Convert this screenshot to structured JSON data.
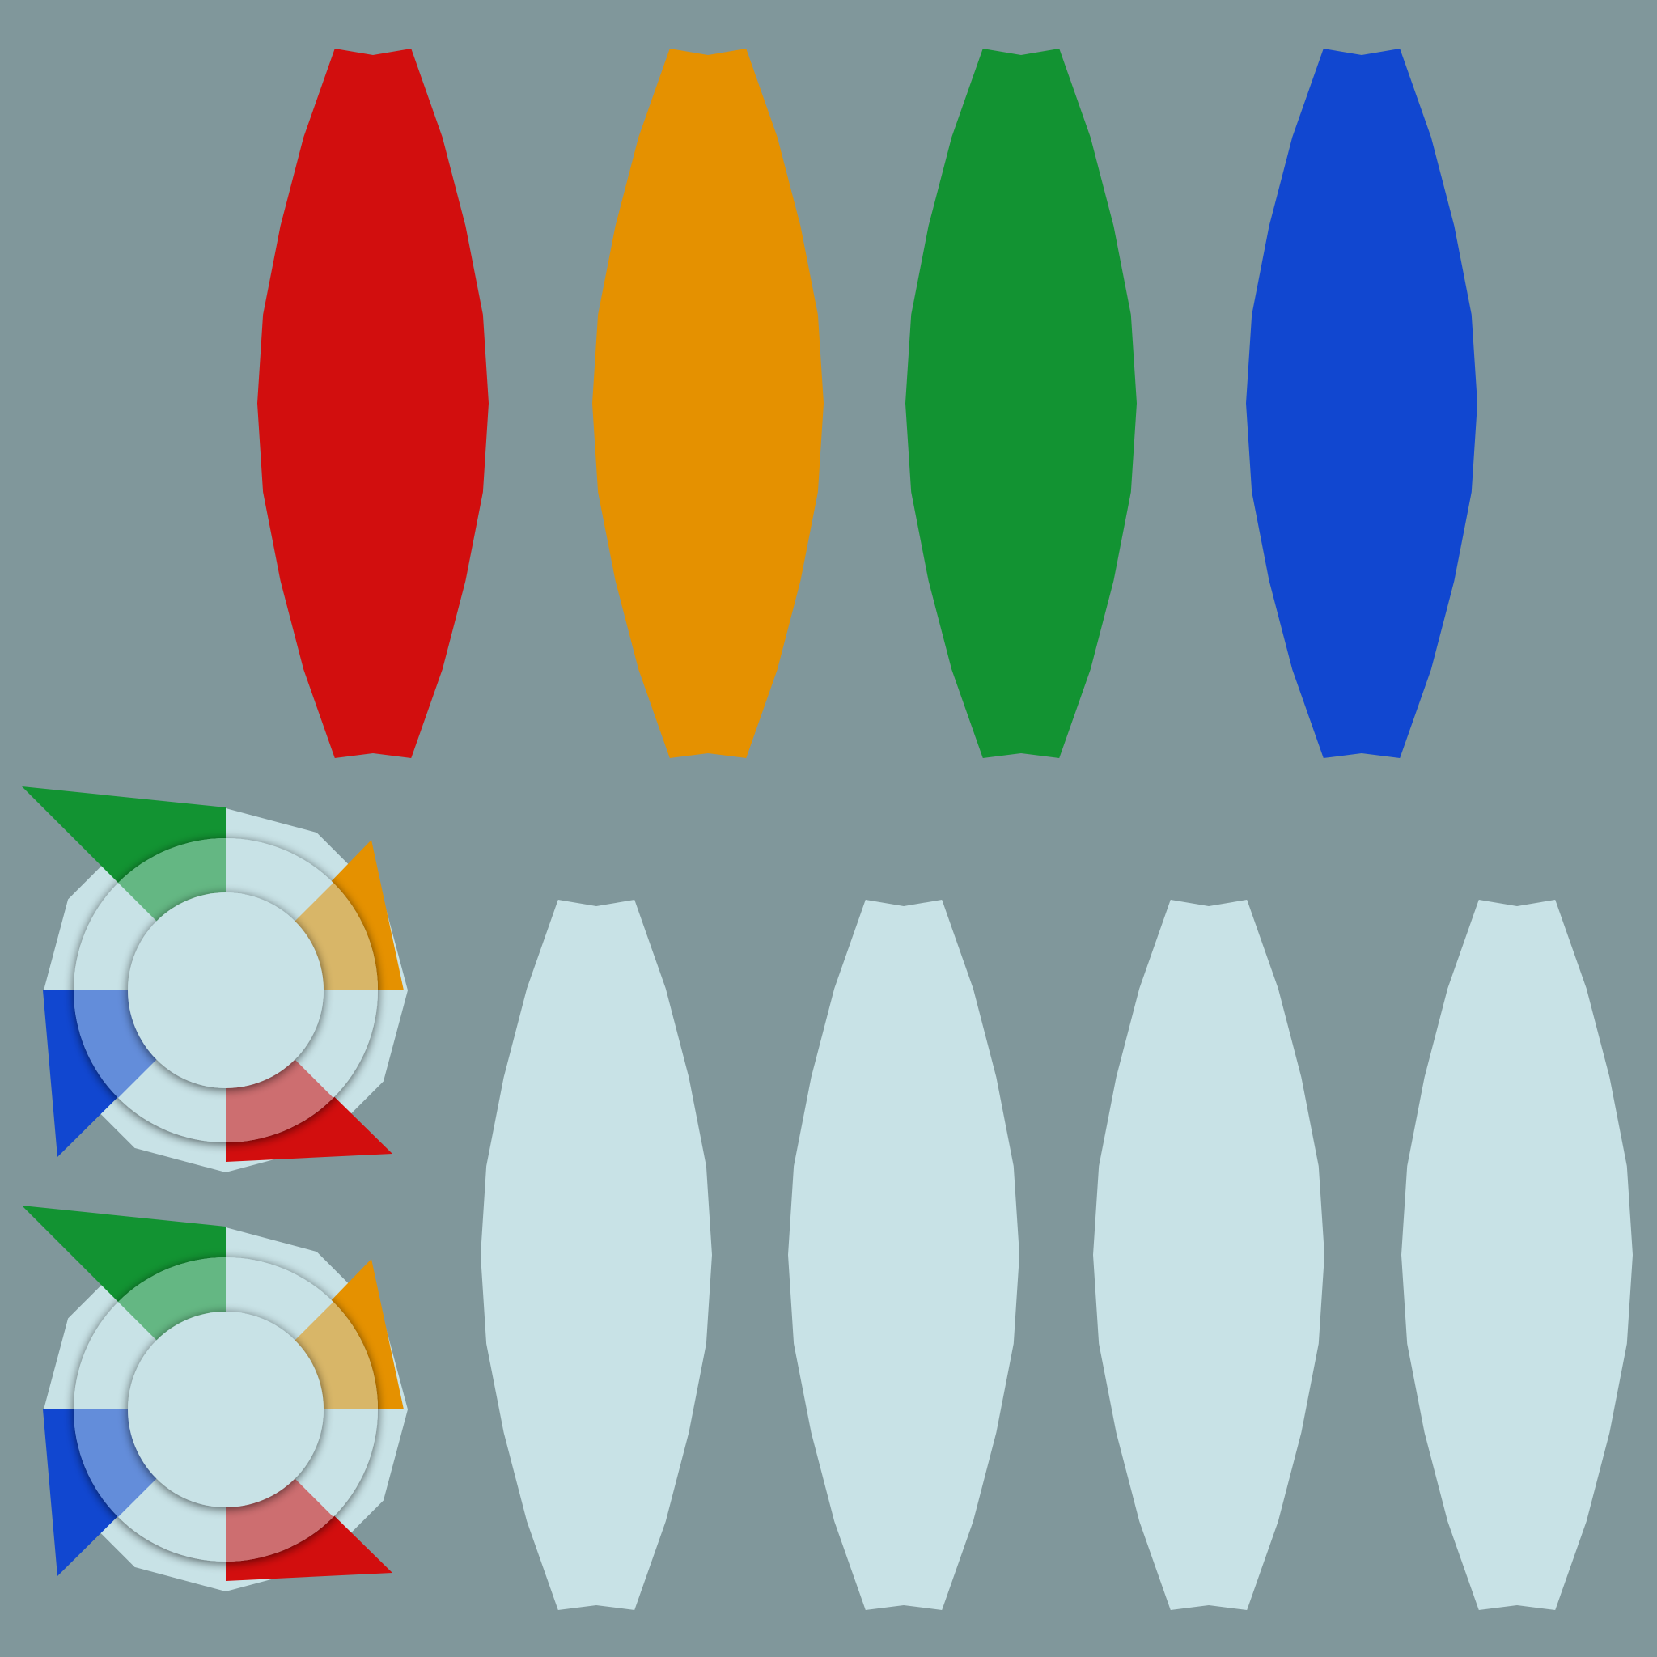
{
  "colors": {
    "background": "#80979b",
    "pale": "#c8e2e6",
    "red": "#d20e0e",
    "orange": "#e59100",
    "green": "#129332",
    "blue": "#1147d0"
  },
  "top_row": {
    "pieces": [
      {
        "name": "red-petal",
        "color": "#d20e0e"
      },
      {
        "name": "orange-petal",
        "color": "#e59100"
      },
      {
        "name": "green-petal",
        "color": "#129332"
      },
      {
        "name": "blue-petal",
        "color": "#1147d0"
      }
    ]
  },
  "bottom_row": {
    "pieces": [
      {
        "name": "pale-petal-1",
        "color": "#c8e2e6"
      },
      {
        "name": "pale-petal-2",
        "color": "#c8e2e6"
      },
      {
        "name": "pale-petal-3",
        "color": "#c8e2e6"
      },
      {
        "name": "pale-petal-4",
        "color": "#c8e2e6"
      }
    ]
  },
  "pinwheels": [
    {
      "name": "pinwheel-upper",
      "segments": [
        "green",
        "orange",
        "red",
        "blue"
      ]
    },
    {
      "name": "pinwheel-lower",
      "segments": [
        "green",
        "orange",
        "red",
        "blue"
      ]
    }
  ]
}
